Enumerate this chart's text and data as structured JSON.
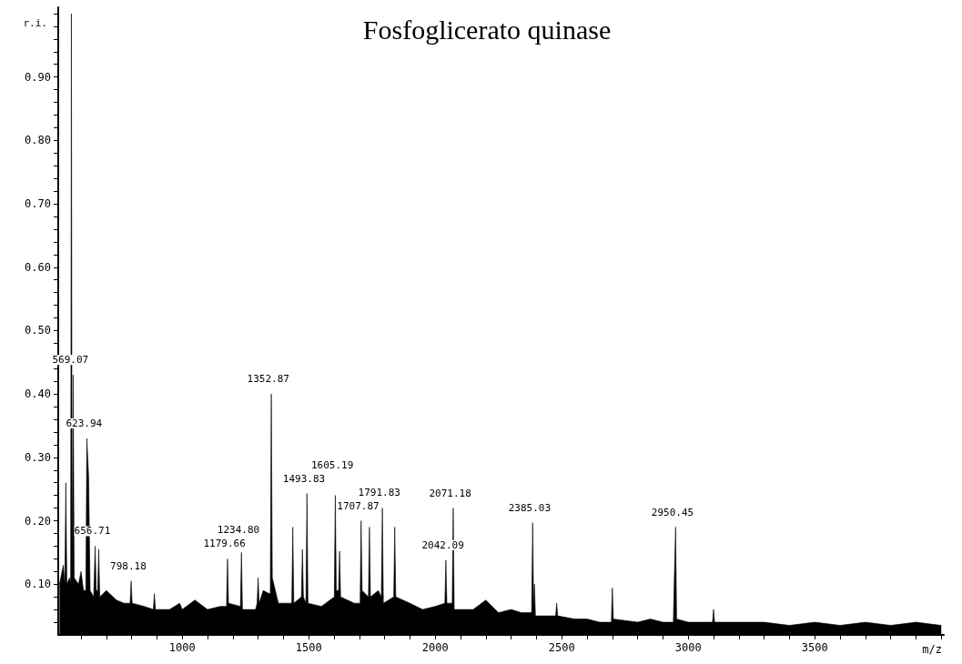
{
  "chart_data": {
    "type": "area",
    "title": "Fosfoglicerato quinase",
    "xlabel": "m/z",
    "ylabel": "r.i.",
    "xlim": [
      510,
      4010
    ],
    "ylim": [
      0.02,
      1.01
    ],
    "xticks": [
      {
        "value": 600,
        "label": null
      },
      {
        "value": 700,
        "label": null
      },
      {
        "value": 800,
        "label": null
      },
      {
        "value": 900,
        "label": null
      },
      1000,
      {
        "value": 1100,
        "label": null
      },
      {
        "value": 1200,
        "label": null
      },
      {
        "value": 1300,
        "label": null
      },
      {
        "value": 1400,
        "label": null
      },
      1500,
      {
        "value": 1600,
        "label": null
      },
      {
        "value": 1700,
        "label": null
      },
      {
        "value": 1800,
        "label": null
      },
      {
        "value": 1900,
        "label": null
      },
      2000,
      {
        "value": 2100,
        "label": null
      },
      {
        "value": 2200,
        "label": null
      },
      {
        "value": 2300,
        "label": null
      },
      {
        "value": 2400,
        "label": null
      },
      2500,
      {
        "value": 2600,
        "label": null
      },
      {
        "value": 2700,
        "label": null
      },
      {
        "value": 2800,
        "label": null
      },
      {
        "value": 2900,
        "label": null
      },
      3000,
      {
        "value": 3100,
        "label": null
      },
      {
        "value": 3200,
        "label": null
      },
      {
        "value": 3300,
        "label": null
      },
      {
        "value": 3400,
        "label": null
      },
      3500,
      {
        "value": 3600,
        "label": null
      },
      {
        "value": 3700,
        "label": null
      },
      {
        "value": 3800,
        "label": null
      },
      {
        "value": 3900,
        "label": null
      },
      {
        "value": 4000,
        "label": null
      }
    ],
    "yticks": [
      {
        "value": 0.04,
        "label": null
      },
      {
        "value": 0.06,
        "label": null
      },
      {
        "value": 0.08,
        "label": null
      },
      {
        "value": 0.1,
        "label": "0.10"
      },
      {
        "value": 0.12,
        "label": null
      },
      {
        "value": 0.14,
        "label": null
      },
      {
        "value": 0.16,
        "label": null
      },
      {
        "value": 0.18,
        "label": null
      },
      {
        "value": 0.2,
        "label": "0.20"
      },
      {
        "value": 0.22,
        "label": null
      },
      {
        "value": 0.24,
        "label": null
      },
      {
        "value": 0.26,
        "label": null
      },
      {
        "value": 0.28,
        "label": null
      },
      {
        "value": 0.3,
        "label": "0.30"
      },
      {
        "value": 0.32,
        "label": null
      },
      {
        "value": 0.34,
        "label": null
      },
      {
        "value": 0.36,
        "label": null
      },
      {
        "value": 0.38,
        "label": null
      },
      {
        "value": 0.4,
        "label": "0.40"
      },
      {
        "value": 0.42,
        "label": null
      },
      {
        "value": 0.44,
        "label": null
      },
      {
        "value": 0.46,
        "label": null
      },
      {
        "value": 0.48,
        "label": null
      },
      {
        "value": 0.5,
        "label": "0.50"
      },
      {
        "value": 0.52,
        "label": null
      },
      {
        "value": 0.54,
        "label": null
      },
      {
        "value": 0.56,
        "label": null
      },
      {
        "value": 0.58,
        "label": null
      },
      {
        "value": 0.6,
        "label": "0.60"
      },
      {
        "value": 0.62,
        "label": null
      },
      {
        "value": 0.64,
        "label": null
      },
      {
        "value": 0.66,
        "label": null
      },
      {
        "value": 0.68,
        "label": null
      },
      {
        "value": 0.7,
        "label": "0.70"
      },
      {
        "value": 0.72,
        "label": null
      },
      {
        "value": 0.74,
        "label": null
      },
      {
        "value": 0.76,
        "label": null
      },
      {
        "value": 0.78,
        "label": null
      },
      {
        "value": 0.8,
        "label": "0.80"
      },
      {
        "value": 0.82,
        "label": null
      },
      {
        "value": 0.84,
        "label": null
      },
      {
        "value": 0.86,
        "label": null
      },
      {
        "value": 0.88,
        "label": null
      },
      {
        "value": 0.9,
        "label": "0.90"
      },
      {
        "value": 0.92,
        "label": null
      },
      {
        "value": 0.94,
        "label": null
      },
      {
        "value": 0.96,
        "label": null
      },
      {
        "value": 0.98,
        "label": null
      },
      {
        "value": 1.0,
        "label": null
      }
    ],
    "series": [
      {
        "color": "#000000",
        "x": [
          515,
          530,
          536,
          540,
          544,
          555,
          559,
          562,
          565,
          569,
          573,
          590,
          600,
          610,
          619,
          623,
          630,
          636,
          650,
          652,
          656,
          660,
          666,
          670,
          674,
          700,
          740,
          770,
          794,
          798,
          802,
          850,
          886,
          890,
          894,
          950,
          990,
          1000,
          1050,
          1100,
          1150,
          1175,
          1179,
          1183,
          1230,
          1234,
          1238,
          1290,
          1296,
          1300,
          1304,
          1320,
          1345,
          1348,
          1352,
          1356,
          1380,
          1433,
          1437,
          1441,
          1471,
          1475,
          1479,
          1489,
          1493,
          1497,
          1550,
          1601,
          1605,
          1609,
          1618,
          1622,
          1626,
          1680,
          1703,
          1707,
          1711,
          1736,
          1740,
          1744,
          1775,
          1787,
          1791,
          1795,
          1836,
          1840,
          1844,
          1900,
          1950,
          2000,
          2038,
          2042,
          2046,
          2067,
          2071,
          2075,
          2150,
          2200,
          2250,
          2300,
          2340,
          2381,
          2385,
          2389,
          2392,
          2396,
          2450,
          2476,
          2480,
          2484,
          2550,
          2600,
          2650,
          2696,
          2700,
          2704,
          2800,
          2850,
          2900,
          2941,
          2945,
          2950,
          2954,
          3000,
          3050,
          3096,
          3100,
          3104,
          3200,
          3300,
          3400,
          3500,
          3600,
          3700,
          3800,
          3900,
          4000
        ],
        "values": [
          0.1,
          0.13,
          0.1,
          0.26,
          0.1,
          0.11,
          0.1,
          1.0,
          0.1,
          0.43,
          0.11,
          0.1,
          0.12,
          0.09,
          0.09,
          0.33,
          0.27,
          0.09,
          0.08,
          0.08,
          0.16,
          0.09,
          0.09,
          0.155,
          0.08,
          0.09,
          0.075,
          0.07,
          0.07,
          0.105,
          0.07,
          0.065,
          0.06,
          0.085,
          0.06,
          0.06,
          0.07,
          0.06,
          0.075,
          0.06,
          0.065,
          0.065,
          0.14,
          0.07,
          0.065,
          0.15,
          0.06,
          0.06,
          0.07,
          0.11,
          0.07,
          0.09,
          0.085,
          0.085,
          0.4,
          0.11,
          0.07,
          0.07,
          0.19,
          0.07,
          0.08,
          0.155,
          0.08,
          0.07,
          0.243,
          0.07,
          0.065,
          0.08,
          0.24,
          0.09,
          0.09,
          0.152,
          0.08,
          0.07,
          0.07,
          0.2,
          0.09,
          0.08,
          0.19,
          0.08,
          0.09,
          0.08,
          0.22,
          0.07,
          0.08,
          0.19,
          0.08,
          0.07,
          0.06,
          0.065,
          0.07,
          0.138,
          0.07,
          0.07,
          0.22,
          0.06,
          0.06,
          0.075,
          0.055,
          0.06,
          0.055,
          0.055,
          0.197,
          0.06,
          0.1,
          0.05,
          0.05,
          0.05,
          0.07,
          0.05,
          0.045,
          0.045,
          0.04,
          0.04,
          0.094,
          0.045,
          0.04,
          0.045,
          0.04,
          0.04,
          0.11,
          0.19,
          0.045,
          0.04,
          0.04,
          0.04,
          0.06,
          0.04,
          0.04,
          0.04,
          0.035,
          0.04,
          0.035,
          0.04,
          0.035,
          0.04,
          0.035
        ]
      }
    ],
    "annotations": [
      {
        "text": "569.07",
        "x": 569,
        "y": 0.43
      },
      {
        "text": "623.94",
        "x": 623,
        "y": 0.33
      },
      {
        "text": "656.71",
        "x": 656,
        "y": 0.16
      },
      {
        "text": "798.18",
        "x": 798,
        "y": 0.105
      },
      {
        "text": "1179.66",
        "x": 1179,
        "y": 0.14
      },
      {
        "text": "1234.80",
        "x": 1234,
        "y": 0.15
      },
      {
        "text": "1352.87",
        "x": 1352,
        "y": 0.4
      },
      {
        "text": "1493.83",
        "x": 1493,
        "y": 0.243
      },
      {
        "text": "1605.19",
        "x": 1605,
        "y": 0.24
      },
      {
        "text": "1707.87",
        "x": 1707,
        "y": 0.2
      },
      {
        "text": "1791.83",
        "x": 1791,
        "y": 0.22
      },
      {
        "text": "2042.09",
        "x": 2042,
        "y": 0.138
      },
      {
        "text": "2071.18",
        "x": 2071,
        "y": 0.22
      },
      {
        "text": "2385.03",
        "x": 2385,
        "y": 0.197
      },
      {
        "text": "2950.45",
        "x": 2950,
        "y": 0.19
      }
    ]
  }
}
